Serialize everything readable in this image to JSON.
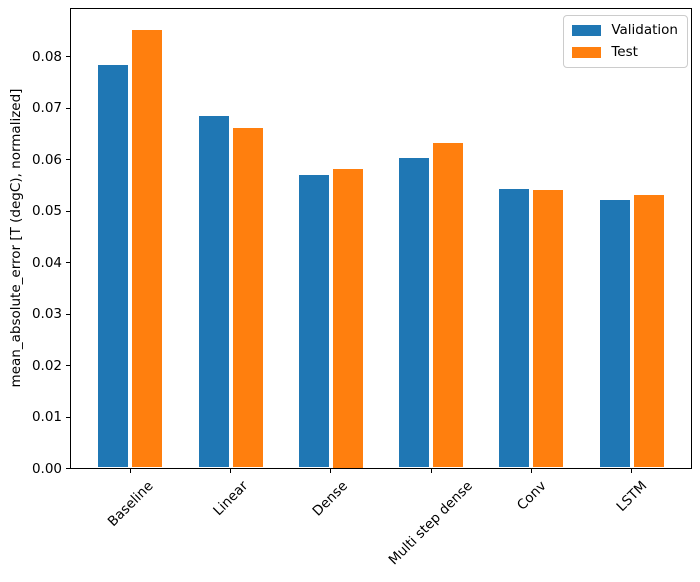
{
  "chart_data": {
    "type": "bar",
    "title": "",
    "xlabel": "",
    "ylabel": "mean_absolute_error [T (degC), normalized]",
    "categories": [
      "Baseline",
      "Linear",
      "Dense",
      "Multi step dense",
      "Conv",
      "LSTM"
    ],
    "series": [
      {
        "name": "Validation",
        "color": "#1f77b4",
        "values": [
          0.0785,
          0.0685,
          0.0571,
          0.0604,
          0.0544,
          0.0522
        ]
      },
      {
        "name": "Test",
        "color": "#ff7f0e",
        "values": [
          0.0852,
          0.0662,
          0.0583,
          0.0632,
          0.0541,
          0.0531
        ]
      }
    ],
    "ylim": [
      0,
      0.0895
    ],
    "xlim": [
      -0.602,
      5.602
    ],
    "yticks": [
      0.0,
      0.01,
      0.02,
      0.03,
      0.04,
      0.05,
      0.06,
      0.07,
      0.08
    ],
    "ytick_labels": [
      "0.00",
      "0.01",
      "0.02",
      "0.03",
      "0.04",
      "0.05",
      "0.06",
      "0.07",
      "0.08"
    ],
    "bar_width": 0.3,
    "bar_offset": 0.17,
    "xtick_rotation": 45,
    "grid": false,
    "legend_position": "upper right",
    "spine_color": "#000000",
    "background": "#ffffff"
  }
}
